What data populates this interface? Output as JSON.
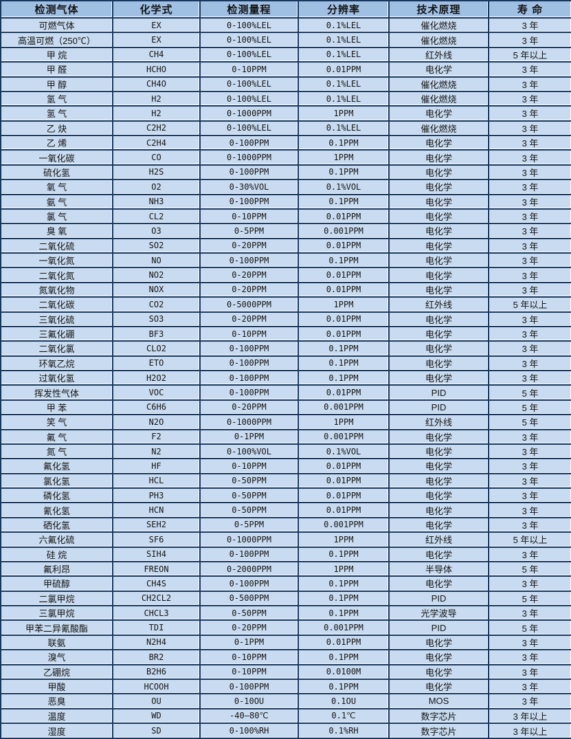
{
  "colors": {
    "header_bg": "#9fbfe3",
    "row_bg": "#c9dbf0",
    "border": "#17375e",
    "gridline": "#ffffff",
    "text": "#141414"
  },
  "chart_data": {
    "type": "table",
    "columns": [
      "检测气体",
      "化学式",
      "检测量程",
      "分辨率",
      "技术原理",
      "寿 命"
    ],
    "column_keys": [
      "gas",
      "formula",
      "range",
      "resolution",
      "principle",
      "lifespan"
    ],
    "rows": [
      [
        "可燃气体",
        "EX",
        "0-100%LEL",
        "0.1%LEL",
        "催化燃烧",
        "3 年"
      ],
      [
        "高温可燃（250℃）",
        "EX",
        "0-100%LEL",
        "0.1%LEL",
        "催化燃烧",
        "3 年"
      ],
      [
        "甲 烷",
        "CH4",
        "0-100%LEL",
        "0.1%LEL",
        "红外线",
        "5 年以上"
      ],
      [
        "甲 醛",
        "HCHO",
        "0-10PPM",
        "0.01PPM",
        "电化学",
        "3 年"
      ],
      [
        "甲 醇",
        "CH4O",
        "0-100%LEL",
        "0.1%LEL",
        "催化燃烧",
        "3 年"
      ],
      [
        "氢 气",
        "H2",
        "0-100%LEL",
        "0.1%LEL",
        "催化燃烧",
        "3 年"
      ],
      [
        "氢 气",
        "H2",
        "0-1000PPM",
        "1PPM",
        "电化学",
        "3 年"
      ],
      [
        "乙 炔",
        "C2H2",
        "0-100%LEL",
        "0.1%LEL",
        "催化燃烧",
        "3 年"
      ],
      [
        "乙 烯",
        "C2H4",
        "0-100PPM",
        "0.1PPM",
        "电化学",
        "3 年"
      ],
      [
        "一氧化碳",
        "CO",
        "0-1000PPM",
        "1PPM",
        "电化学",
        "3 年"
      ],
      [
        "硫化氢",
        "H2S",
        "0-100PPM",
        "0.1PPM",
        "电化学",
        "3 年"
      ],
      [
        "氧 气",
        "O2",
        "0-30%VOL",
        "0.1%VOL",
        "电化学",
        "3 年"
      ],
      [
        "氨 气",
        "NH3",
        "0-100PPM",
        "0.1PPM",
        "电化学",
        "3 年"
      ],
      [
        "氯 气",
        "CL2",
        "0-10PPM",
        "0.01PPM",
        "电化学",
        "3 年"
      ],
      [
        "臭 氧",
        "O3",
        "0-5PPM",
        "0.001PPM",
        "电化学",
        "3 年"
      ],
      [
        "二氧化硫",
        "SO2",
        "0-20PPM",
        "0.01PPM",
        "电化学",
        "3 年"
      ],
      [
        "一氧化氮",
        "NO",
        "0-100PPM",
        "0.1PPM",
        "电化学",
        "3 年"
      ],
      [
        "二氧化氮",
        "NO2",
        "0-20PPM",
        "0.01PPM",
        "电化学",
        "3 年"
      ],
      [
        "氮氧化物",
        "NOX",
        "0-20PPM",
        "0.01PPM",
        "电化学",
        "3 年"
      ],
      [
        "二氧化碳",
        "CO2",
        "0-5000PPM",
        "1PPM",
        "红外线",
        "5 年以上"
      ],
      [
        "三氧化硫",
        "SO3",
        "0-20PPM",
        "0.01PPM",
        "电化学",
        "3 年"
      ],
      [
        "三氟化硼",
        "BF3",
        "0-10PPM",
        "0.01PPM",
        "电化学",
        "3 年"
      ],
      [
        "二氧化氯",
        "CLO2",
        "0-100PPM",
        "0.1PPM",
        "电化学",
        "3 年"
      ],
      [
        "环氧乙烷",
        "ETO",
        "0-100PPM",
        "0.1PPM",
        "电化学",
        "3 年"
      ],
      [
        "过氧化氢",
        "H2O2",
        "0-100PPM",
        "0.1PPM",
        "电化学",
        "3 年"
      ],
      [
        "挥发性气体",
        "VOC",
        "0-100PPM",
        "0.01PPM",
        "PID",
        "5 年"
      ],
      [
        "甲 苯",
        "C6H6",
        "0-20PPM",
        "0.001PPM",
        "PID",
        "5 年"
      ],
      [
        "笑 气",
        "N2O",
        "0-1000PPM",
        "1PPM",
        "红外线",
        "5 年"
      ],
      [
        "氟 气",
        "F2",
        "0-1PPM",
        "0.001PPM",
        "电化学",
        "3 年"
      ],
      [
        "氮 气",
        "N2",
        "0-100%VOL",
        "0.1%VOL",
        "电化学",
        "3 年"
      ],
      [
        "氟化氢",
        "HF",
        "0-10PPM",
        "0.01PPM",
        "电化学",
        "3 年"
      ],
      [
        "氯化氢",
        "HCL",
        "0-50PPM",
        "0.01PPM",
        "电化学",
        "3 年"
      ],
      [
        "磷化氢",
        "PH3",
        "0-50PPM",
        "0.01PPM",
        "电化学",
        "3 年"
      ],
      [
        "氰化氢",
        "HCN",
        "0-50PPM",
        "0.01PPM",
        "电化学",
        "3 年"
      ],
      [
        "硒化氢",
        "SEH2",
        "0-5PPM",
        "0.001PPM",
        "电化学",
        "3 年"
      ],
      [
        "六氟化硫",
        "SF6",
        "0-1000PPM",
        "1PPM",
        "红外线",
        "5 年以上"
      ],
      [
        "硅 烷",
        "SIH4",
        "0-100PPM",
        "0.1PPM",
        "电化学",
        "3 年"
      ],
      [
        "氟利昂",
        "FREON",
        "0-2000PPM",
        "1PPM",
        "半导体",
        "5 年"
      ],
      [
        "甲硫醇",
        "CH4S",
        "0-100PPM",
        "0.1PPM",
        "电化学",
        "3 年"
      ],
      [
        "二氯甲烷",
        "CH2CL2",
        "0-500PPM",
        "0.1PPM",
        "PID",
        "5 年"
      ],
      [
        "三氯甲烷",
        "CHCL3",
        "0-50PPM",
        "0.1PPM",
        "光学波导",
        "3 年"
      ],
      [
        "甲苯二异氰酸酯",
        "TDI",
        "0-20PPM",
        "0.001PPM",
        "PID",
        "5 年"
      ],
      [
        "联氨",
        "N2H4",
        "0-1PPM",
        "0.01PPM",
        "电化学",
        "3 年"
      ],
      [
        "溴气",
        "BR2",
        "0-10PPM",
        "0.1PPM",
        "电化学",
        "3 年"
      ],
      [
        "乙硼烷",
        "B2H6",
        "0-10PPM",
        "0.0100M",
        "电化学",
        "3 年"
      ],
      [
        "甲酸",
        "HCOOH",
        "0-100PPM",
        "0.1PPM",
        "电化学",
        "3 年"
      ],
      [
        "恶臭",
        "OU",
        "0-10OU",
        "0.1OU",
        "MOS",
        "3 年"
      ],
      [
        "温度",
        "WD",
        "-40—80℃",
        "0.1℃",
        "数字芯片",
        "3 年以上"
      ],
      [
        "湿度",
        "SD",
        "0-100%RH",
        "0.1%RH",
        "数字芯片",
        "3 年以上"
      ]
    ]
  }
}
